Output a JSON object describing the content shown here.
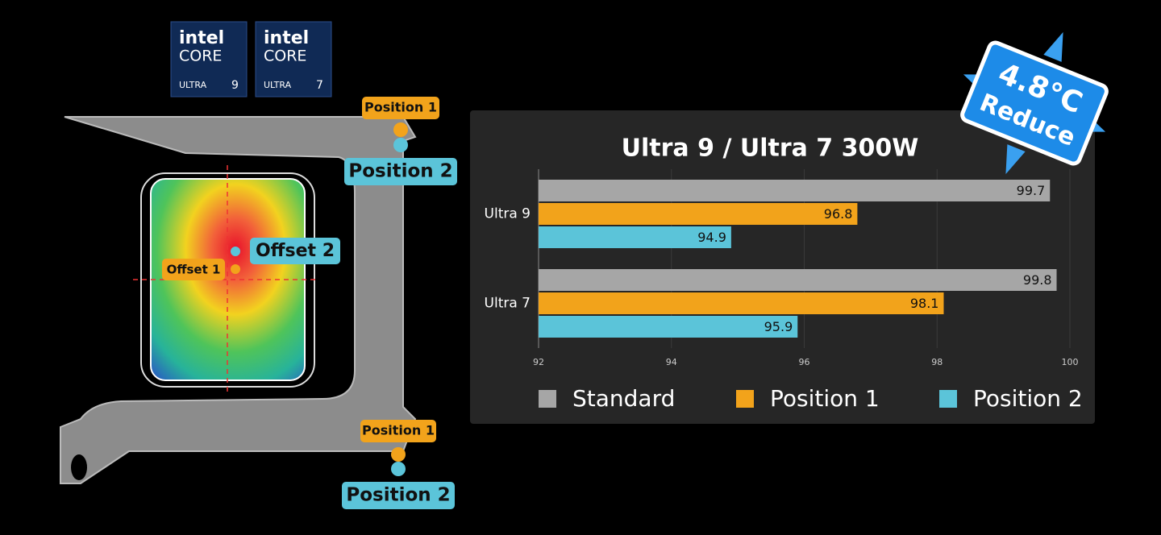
{
  "chart_data": {
    "type": "hbar",
    "title": "Ultra 9 / Ultra 7 300W",
    "categories": [
      "Ultra 9",
      "Ultra 7"
    ],
    "series": [
      {
        "name": "Standard",
        "color": "#a6a6a6",
        "values": [
          99.7,
          99.8
        ]
      },
      {
        "name": "Position 1",
        "color": "#f2a31b",
        "values": [
          96.8,
          98.1
        ]
      },
      {
        "name": "Position 2",
        "color": "#5bc4d9",
        "values": [
          94.9,
          95.9
        ]
      }
    ],
    "xlim": [
      92,
      100
    ],
    "xticks": [
      92,
      94,
      96,
      98,
      100
    ],
    "grid": true,
    "legend": "bottom"
  },
  "badges": [
    {
      "brand": "intel",
      "line": "CORE",
      "tier": "ULTRA",
      "number": "9"
    },
    {
      "brand": "intel",
      "line": "CORE",
      "tier": "ULTRA",
      "number": "7"
    }
  ],
  "illustration": {
    "top_position_1": "Position 1",
    "top_position_2": "Position 2",
    "bottom_position_1": "Position 1",
    "bottom_position_2": "Position 2",
    "offset_1": "Offset 1",
    "offset_2": "Offset 2"
  },
  "callout": {
    "value": "4.8°C",
    "label": "Reduce"
  }
}
